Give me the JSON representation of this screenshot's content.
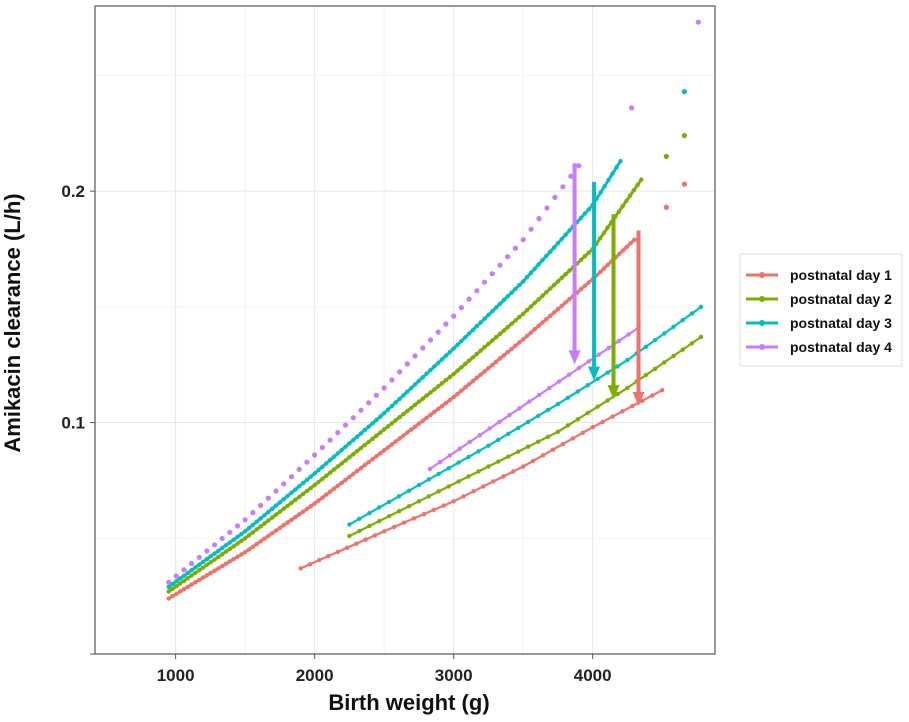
{
  "chart_data": {
    "type": "line",
    "xlabel": "Birth weight (g)",
    "ylabel": "Amikacin clearance (L/h)",
    "xlim": [
      420,
      4880
    ],
    "ylim": [
      0.0,
      0.28
    ],
    "x_ticks": [
      1000,
      2000,
      3000,
      4000
    ],
    "y_ticks": [
      0.1,
      0.2
    ],
    "grid": true,
    "legend_position": "right",
    "legend": [
      "postnatal day 1",
      "postnatal day 2",
      "postnatal day 3",
      "postnatal day 4"
    ],
    "series": [
      {
        "name": "postnatal day 1",
        "color": "#f0716a",
        "upper": {
          "x": [
            950,
            1500,
            2000,
            2500,
            3000,
            3500,
            4000,
            4300
          ],
          "y": [
            0.024,
            0.044,
            0.065,
            0.088,
            0.111,
            0.136,
            0.162,
            0.179
          ]
        },
        "upper_extension": {
          "x": [
            4530,
            4660
          ],
          "y": [
            0.193,
            0.203
          ]
        },
        "lower": {
          "x": [
            1900,
            2500,
            3000,
            3500,
            4000,
            4500
          ],
          "y": [
            0.037,
            0.053,
            0.066,
            0.081,
            0.098,
            0.114
          ]
        },
        "arrow": {
          "x": 4330,
          "from": 0.183,
          "to": 0.108
        }
      },
      {
        "name": "postnatal day 2",
        "color": "#7cae00",
        "upper": {
          "x": [
            950,
            1500,
            2000,
            2500,
            3000,
            3500,
            4000,
            4350
          ],
          "y": [
            0.027,
            0.05,
            0.073,
            0.097,
            0.121,
            0.147,
            0.175,
            0.205
          ]
        },
        "upper_extension": {
          "x": [
            4530,
            4660
          ],
          "y": [
            0.215,
            0.224
          ]
        },
        "lower": {
          "x": [
            2250,
            2750,
            3250,
            3750,
            4250,
            4780
          ],
          "y": [
            0.051,
            0.066,
            0.081,
            0.096,
            0.115,
            0.137
          ]
        },
        "arrow": {
          "x": 4150,
          "from": 0.19,
          "to": 0.111
        }
      },
      {
        "name": "postnatal day 3",
        "color": "#00bfc4",
        "upper": {
          "x": [
            950,
            1500,
            2000,
            2500,
            3000,
            3500,
            4000,
            4200
          ],
          "y": [
            0.029,
            0.053,
            0.078,
            0.104,
            0.132,
            0.161,
            0.194,
            0.213
          ]
        },
        "upper_extension": {
          "x": [
            4660
          ],
          "y": [
            0.243
          ]
        },
        "lower": {
          "x": [
            2250,
            2750,
            3250,
            3750,
            4250,
            4780
          ],
          "y": [
            0.056,
            0.073,
            0.09,
            0.108,
            0.127,
            0.15
          ]
        },
        "arrow": {
          "x": 4010,
          "from": 0.204,
          "to": 0.119
        }
      },
      {
        "name": "postnatal day 4",
        "color": "#c77cff",
        "upper": {
          "x": [
            950,
            1500,
            2000,
            2500,
            3000,
            3500,
            3900
          ],
          "y": [
            0.031,
            0.058,
            0.086,
            0.115,
            0.146,
            0.179,
            0.211
          ]
        },
        "upper_extension": {
          "x": [
            4280,
            4760
          ],
          "y": [
            0.236,
            0.273
          ]
        },
        "lower": {
          "x": [
            2830,
            4330
          ],
          "y": [
            0.08,
            0.141
          ]
        },
        "arrow": {
          "x": 3870,
          "from": 0.212,
          "to": 0.126
        }
      }
    ]
  }
}
